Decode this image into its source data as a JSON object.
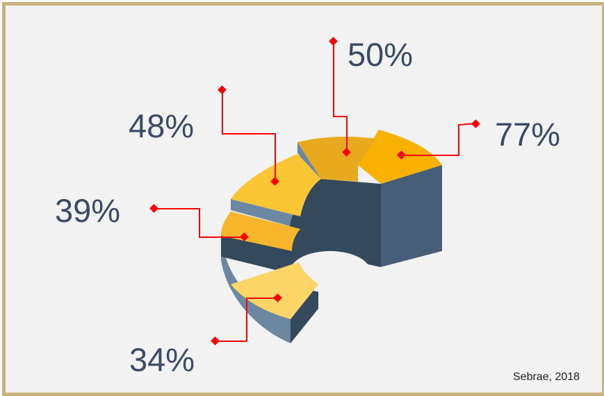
{
  "chart_data": {
    "type": "pie",
    "title": "",
    "categories": [
      "77%",
      "50%",
      "48%",
      "39%",
      "34%"
    ],
    "values": [
      77,
      50,
      48,
      39,
      34
    ],
    "labels": [
      "77%",
      "50%",
      "48%",
      "39%",
      "34%"
    ],
    "colors": [
      "#f8b100",
      "#e8a91e",
      "#fbc634",
      "#f6b52a",
      "#fdd466"
    ]
  },
  "source": "Sebrae, 2018",
  "colors": {
    "frame": "#c9b27c",
    "background": "#f2f2f2",
    "callout": "#ff0000",
    "label_text": "#3b4a66",
    "side_light": "#6b87a2",
    "side_dark": "#34495c"
  }
}
